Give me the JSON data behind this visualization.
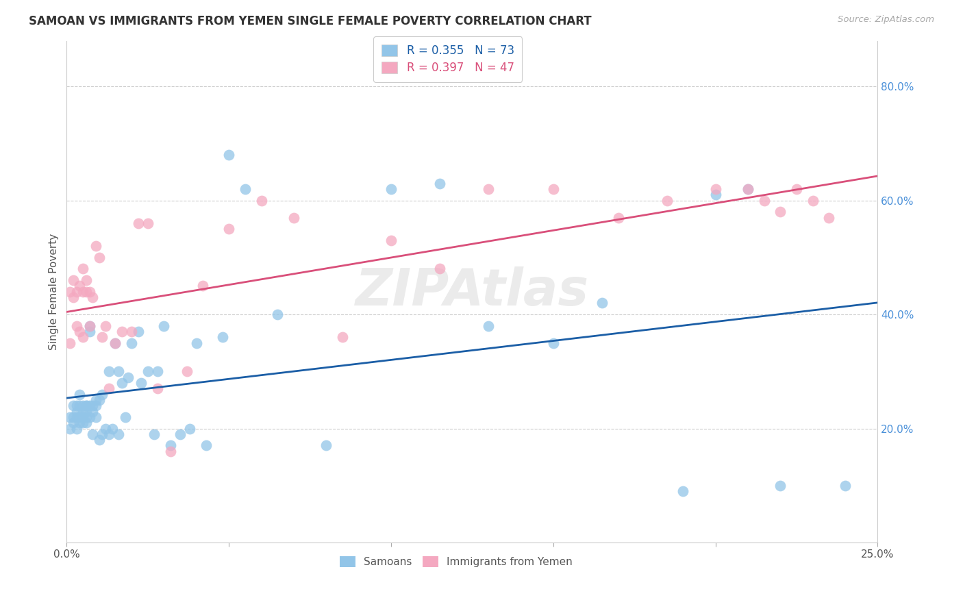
{
  "title": "SAMOAN VS IMMIGRANTS FROM YEMEN SINGLE FEMALE POVERTY CORRELATION CHART",
  "source": "Source: ZipAtlas.com",
  "ylabel": "Single Female Poverty",
  "legend_samoans": "Samoans",
  "legend_yemen": "Immigrants from Yemen",
  "R_samoans": 0.355,
  "N_samoans": 73,
  "R_yemen": 0.397,
  "N_yemen": 47,
  "color_samoans": "#92C5E8",
  "color_yemen": "#F4A8C0",
  "line_color_samoans": "#1B5EA6",
  "line_color_yemen": "#D94F7A",
  "watermark": "ZIPAtlas",
  "xlim": [
    0.0,
    0.25
  ],
  "ylim": [
    0.0,
    0.88
  ],
  "samoans_x": [
    0.001,
    0.001,
    0.002,
    0.002,
    0.002,
    0.003,
    0.003,
    0.003,
    0.003,
    0.004,
    0.004,
    0.004,
    0.004,
    0.005,
    0.005,
    0.005,
    0.005,
    0.006,
    0.006,
    0.006,
    0.006,
    0.006,
    0.007,
    0.007,
    0.007,
    0.007,
    0.008,
    0.008,
    0.008,
    0.009,
    0.009,
    0.009,
    0.01,
    0.01,
    0.011,
    0.011,
    0.012,
    0.013,
    0.013,
    0.014,
    0.015,
    0.016,
    0.016,
    0.017,
    0.018,
    0.019,
    0.02,
    0.022,
    0.023,
    0.025,
    0.027,
    0.028,
    0.03,
    0.032,
    0.035,
    0.038,
    0.04,
    0.043,
    0.048,
    0.05,
    0.055,
    0.065,
    0.08,
    0.1,
    0.115,
    0.13,
    0.15,
    0.165,
    0.19,
    0.2,
    0.21,
    0.22,
    0.24
  ],
  "samoans_y": [
    0.22,
    0.2,
    0.22,
    0.24,
    0.21,
    0.23,
    0.22,
    0.2,
    0.24,
    0.22,
    0.24,
    0.26,
    0.21,
    0.24,
    0.22,
    0.23,
    0.21,
    0.24,
    0.23,
    0.22,
    0.21,
    0.24,
    0.37,
    0.24,
    0.22,
    0.38,
    0.23,
    0.19,
    0.24,
    0.25,
    0.22,
    0.24,
    0.25,
    0.18,
    0.19,
    0.26,
    0.2,
    0.3,
    0.19,
    0.2,
    0.35,
    0.3,
    0.19,
    0.28,
    0.22,
    0.29,
    0.35,
    0.37,
    0.28,
    0.3,
    0.19,
    0.3,
    0.38,
    0.17,
    0.19,
    0.2,
    0.35,
    0.17,
    0.36,
    0.68,
    0.62,
    0.4,
    0.17,
    0.62,
    0.63,
    0.38,
    0.35,
    0.42,
    0.09,
    0.61,
    0.62,
    0.1,
    0.1
  ],
  "yemen_x": [
    0.001,
    0.001,
    0.002,
    0.002,
    0.003,
    0.003,
    0.004,
    0.004,
    0.005,
    0.005,
    0.005,
    0.006,
    0.006,
    0.007,
    0.007,
    0.008,
    0.009,
    0.01,
    0.011,
    0.012,
    0.013,
    0.015,
    0.017,
    0.02,
    0.022,
    0.025,
    0.028,
    0.032,
    0.037,
    0.042,
    0.05,
    0.06,
    0.07,
    0.085,
    0.1,
    0.115,
    0.13,
    0.15,
    0.17,
    0.185,
    0.2,
    0.21,
    0.215,
    0.22,
    0.225,
    0.23,
    0.235
  ],
  "yemen_y": [
    0.35,
    0.44,
    0.43,
    0.46,
    0.44,
    0.38,
    0.45,
    0.37,
    0.44,
    0.36,
    0.48,
    0.44,
    0.46,
    0.44,
    0.38,
    0.43,
    0.52,
    0.5,
    0.36,
    0.38,
    0.27,
    0.35,
    0.37,
    0.37,
    0.56,
    0.56,
    0.27,
    0.16,
    0.3,
    0.45,
    0.55,
    0.6,
    0.57,
    0.36,
    0.53,
    0.48,
    0.62,
    0.62,
    0.57,
    0.6,
    0.62,
    0.62,
    0.6,
    0.58,
    0.62,
    0.6,
    0.57
  ]
}
